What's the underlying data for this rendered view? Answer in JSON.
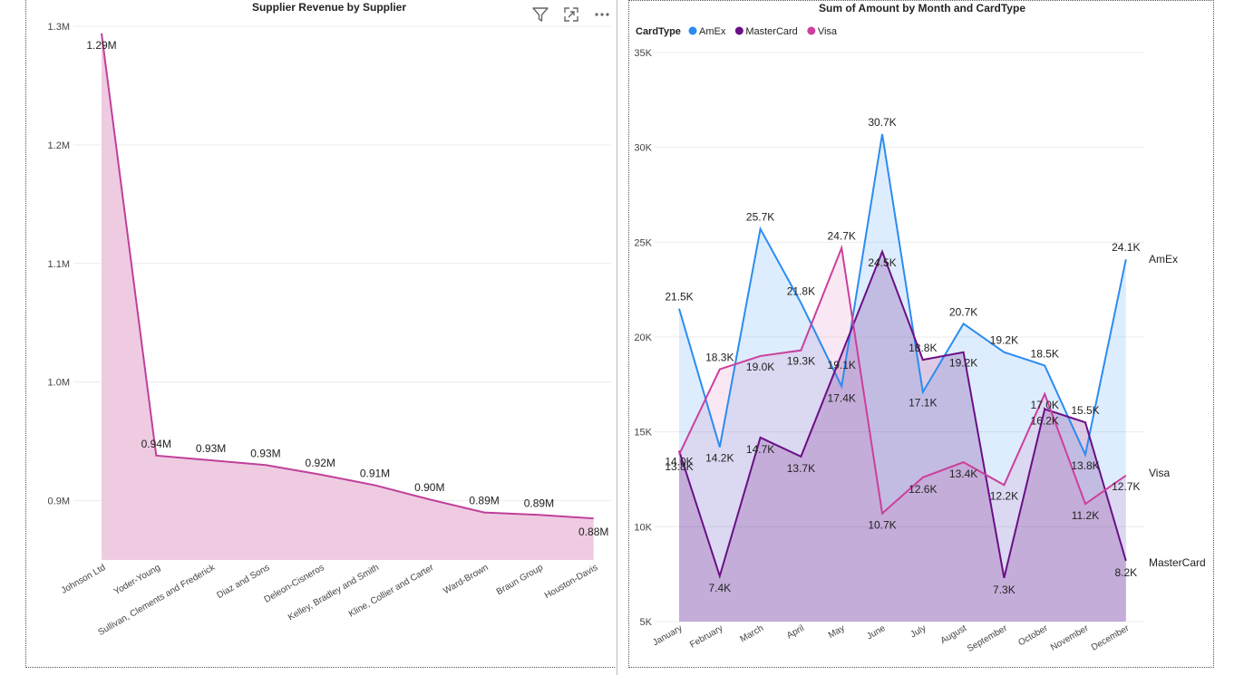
{
  "colors": {
    "left_line": "#c0409a",
    "left_fill": "#efcbe2",
    "amex": "#2b8cf0",
    "mastercard": "#6a0f86",
    "visa": "#cc3f9d",
    "grid": "#ececec",
    "axis_text": "#444444",
    "label_text": "#222222"
  },
  "visual_header_icons": [
    "filter-icon",
    "focus-mode-icon",
    "more-options-icon"
  ],
  "chart_data": [
    {
      "type": "area",
      "title": "Supplier Revenue by Supplier",
      "categories": [
        "Johnson Ltd",
        "Yoder-Young",
        "Sullivan, Clements and Frederick",
        "Diaz and Sons",
        "Deleon-Cisneros",
        "Kelley, Bradley and Smith",
        "Kline, Collier and Carter",
        "Ward-Brown",
        "Braun Group",
        "Houston-Davis"
      ],
      "series": [
        {
          "values": [
            1.294,
            0.938,
            0.934,
            0.93,
            0.922,
            0.913,
            0.901,
            0.89,
            0.888,
            0.885
          ],
          "labels": [
            "1.29M",
            "0.94M",
            "0.93M",
            "0.93M",
            "0.92M",
            "0.91M",
            "0.90M",
            "0.89M",
            "0.89M",
            "0.88M"
          ]
        }
      ],
      "ylim": [
        0.85,
        1.3
      ],
      "yticks": [
        0.9,
        1.0,
        1.1,
        1.2,
        1.3
      ],
      "ytick_labels": [
        "0.9M",
        "1.0M",
        "1.1M",
        "1.2M",
        "1.3M"
      ],
      "grid": true,
      "xlabel": "",
      "ylabel": ""
    },
    {
      "type": "area",
      "title": "Sum of Amount by Month and CardType",
      "legend_title": "CardType",
      "legend_position": "top-left",
      "categories": [
        "January",
        "February",
        "March",
        "April",
        "May",
        "June",
        "July",
        "August",
        "September",
        "October",
        "November",
        "December"
      ],
      "series": [
        {
          "name": "AmEx",
          "values": [
            21.5,
            14.2,
            25.7,
            21.8,
            17.4,
            30.7,
            17.1,
            20.7,
            19.2,
            18.5,
            13.8,
            24.1
          ],
          "labels": [
            "21.5K",
            "14.2K",
            "25.7K",
            "21.8K",
            "17.4K",
            "30.7K",
            "17.1K",
            "20.7K",
            "19.2K",
            "18.5K",
            "13.8K",
            "24.1K"
          ]
        },
        {
          "name": "MasterCard",
          "values": [
            14.0,
            7.4,
            14.7,
            13.7,
            19.1,
            24.5,
            18.8,
            19.2,
            7.3,
            16.2,
            15.5,
            8.2
          ],
          "labels": [
            "14.0K",
            "7.4K",
            "14.7K",
            "13.7K",
            "19.1K",
            "24.5K",
            "18.8K",
            "19.2K",
            "7.3K",
            "16.2K",
            "15.5K",
            "8.2K"
          ]
        },
        {
          "name": "Visa",
          "values": [
            13.8,
            18.3,
            19.0,
            19.3,
            24.7,
            10.7,
            12.6,
            13.4,
            12.2,
            17.0,
            11.2,
            12.7
          ],
          "labels": [
            "13.8K",
            "18.3K",
            "19.0K",
            "19.3K",
            "24.7K",
            "10.7K",
            "12.6K",
            "13.4K",
            "12.2K",
            "17.0K",
            "11.2K",
            "12.7K"
          ]
        }
      ],
      "ylim": [
        5,
        35
      ],
      "yticks": [
        5,
        10,
        15,
        20,
        25,
        30,
        35
      ],
      "ytick_labels": [
        "5K",
        "10K",
        "15K",
        "20K",
        "25K",
        "30K",
        "35K"
      ],
      "grid": true,
      "xlabel": "",
      "ylabel": ""
    }
  ]
}
